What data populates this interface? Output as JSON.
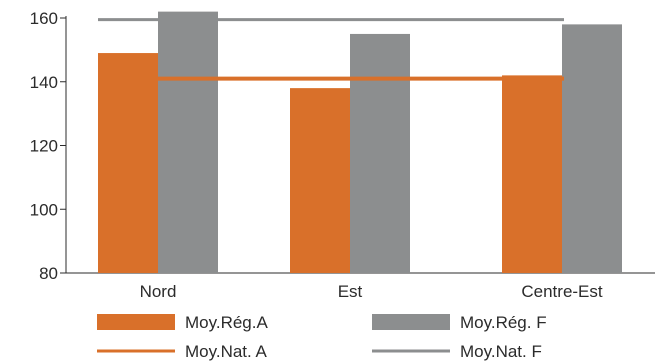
{
  "chart_data": {
    "type": "bar",
    "categories": [
      "Nord",
      "Est",
      "Centre-Est"
    ],
    "ylim": [
      80,
      160
    ],
    "yticks": [
      80,
      100,
      120,
      140,
      160
    ],
    "series": [
      {
        "name": "Moy.Rég.A",
        "values": [
          149,
          138,
          142
        ],
        "color": "#d9702a"
      },
      {
        "name": "Moy.Rég. F",
        "values": [
          162,
          155,
          158
        ],
        "color": "#8c8e8f"
      }
    ],
    "reference_lines": [
      {
        "name": "Moy.Nat. A",
        "value": 141,
        "color": "#d9702a"
      },
      {
        "name": "Moy.Nat. F",
        "value": 159.5,
        "color": "#8c8e8f"
      }
    ],
    "legend_position": "bottom",
    "grid": false
  }
}
